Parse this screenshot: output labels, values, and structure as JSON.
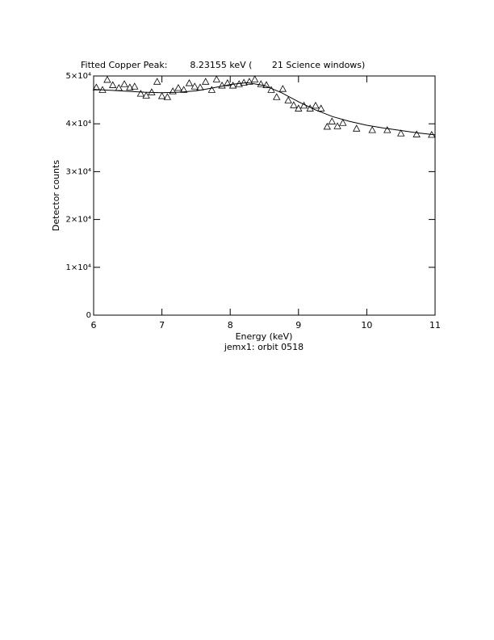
{
  "chart_data": {
    "type": "scatter",
    "title": "Fitted Copper Peak:        8.23155 keV (       21 Science windows)",
    "xlabel": "Energy (keV)",
    "subtitle": "jemx1: orbit 0518",
    "ylabel": "Detector counts",
    "xlim": [
      6,
      11
    ],
    "ylim": [
      0,
      50000
    ],
    "xticks": [
      6,
      7,
      8,
      9,
      10,
      11
    ],
    "yticks": [
      0,
      {
        "value": 10000,
        "label": "1×10⁴"
      },
      {
        "value": 20000,
        "label": "2×10⁴"
      },
      {
        "value": 30000,
        "label": "3×10⁴"
      },
      {
        "value": 40000,
        "label": "4×10⁴"
      },
      {
        "value": 50000,
        "label": "5×10⁴"
      }
    ],
    "series": [
      {
        "color": "#000000",
        "marker": "triangle",
        "x": [
          6.04,
          6.13,
          6.2,
          6.28,
          6.37,
          6.45,
          6.53,
          6.6,
          6.69,
          6.77,
          6.85,
          6.93,
          7.0,
          7.08,
          7.16,
          7.24,
          7.32,
          7.4,
          7.48,
          7.56,
          7.64,
          7.73,
          7.8,
          7.88,
          7.96,
          8.04,
          8.13,
          8.2,
          8.28,
          8.36,
          8.45,
          8.53,
          8.6,
          8.68,
          8.77,
          8.85,
          8.93,
          9.0,
          9.08,
          9.17,
          9.25,
          9.33,
          9.42,
          9.49,
          9.57,
          9.65,
          9.85,
          10.08,
          10.3,
          10.5,
          10.73,
          10.95
        ],
        "values": [
          47600,
          47100,
          49200,
          48100,
          47500,
          48300,
          47600,
          47800,
          46300,
          45900,
          46600,
          48800,
          45800,
          45600,
          46800,
          47500,
          47100,
          48500,
          47800,
          47600,
          48800,
          47100,
          49300,
          48000,
          48500,
          48000,
          48300,
          48600,
          48800,
          49300,
          48300,
          48100,
          47100,
          45600,
          47300,
          44900,
          43900,
          43200,
          43800,
          43200,
          43800,
          43200,
          39400,
          40500,
          39500,
          40200,
          39000,
          38700,
          38700,
          38000,
          37800,
          37700
        ]
      },
      {
        "color": "#000000",
        "marker": "line",
        "x": [
          6.0,
          6.25,
          6.5,
          6.75,
          7.0,
          7.25,
          7.5,
          7.75,
          8.0,
          8.25,
          8.5,
          8.75,
          9.0,
          9.25,
          9.5,
          9.75,
          10.0,
          10.25,
          10.5,
          10.75,
          11.0
        ],
        "values": [
          47200,
          47000,
          46800,
          46600,
          46500,
          46600,
          46900,
          47500,
          48200,
          48600,
          48000,
          46500,
          44600,
          42900,
          41500,
          40500,
          39700,
          39100,
          38600,
          38100,
          37700
        ]
      }
    ]
  }
}
